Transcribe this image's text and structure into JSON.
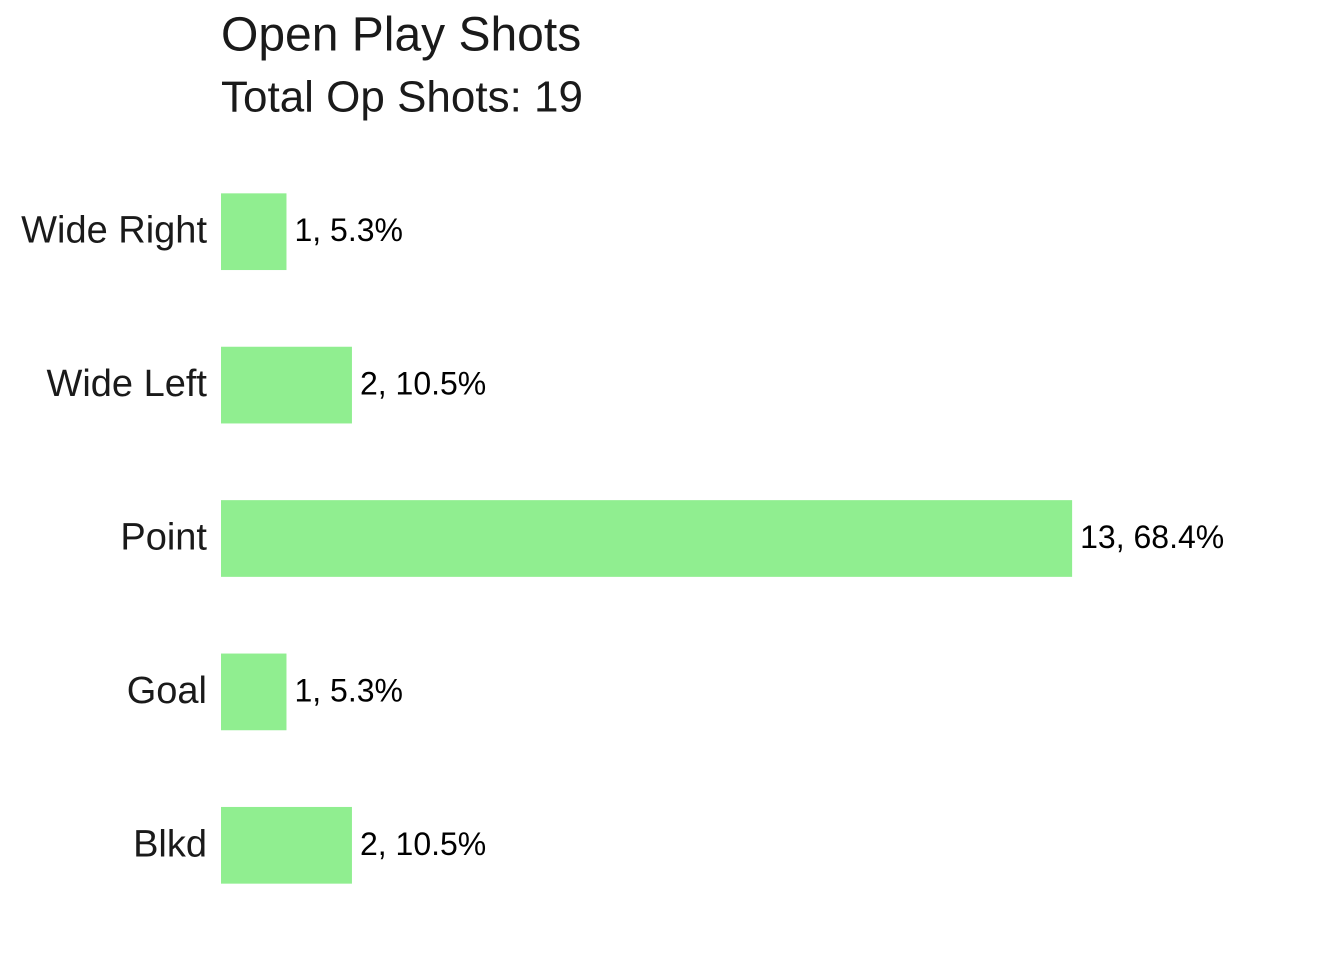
{
  "chart_data": {
    "type": "bar",
    "orientation": "horizontal",
    "title": "Open Play Shots",
    "subtitle": "Total Op Shots: 19",
    "categories": [
      "Wide Right",
      "Wide Left",
      "Point",
      "Goal",
      "Blkd"
    ],
    "values": [
      1,
      2,
      13,
      1,
      2
    ],
    "value_labels": [
      "1, 5.3%",
      "2, 10.5%",
      "13, 68.4%",
      "1, 5.3%",
      "2, 10.5%"
    ],
    "color": "#90ee90",
    "xlim": [
      0,
      17
    ]
  }
}
